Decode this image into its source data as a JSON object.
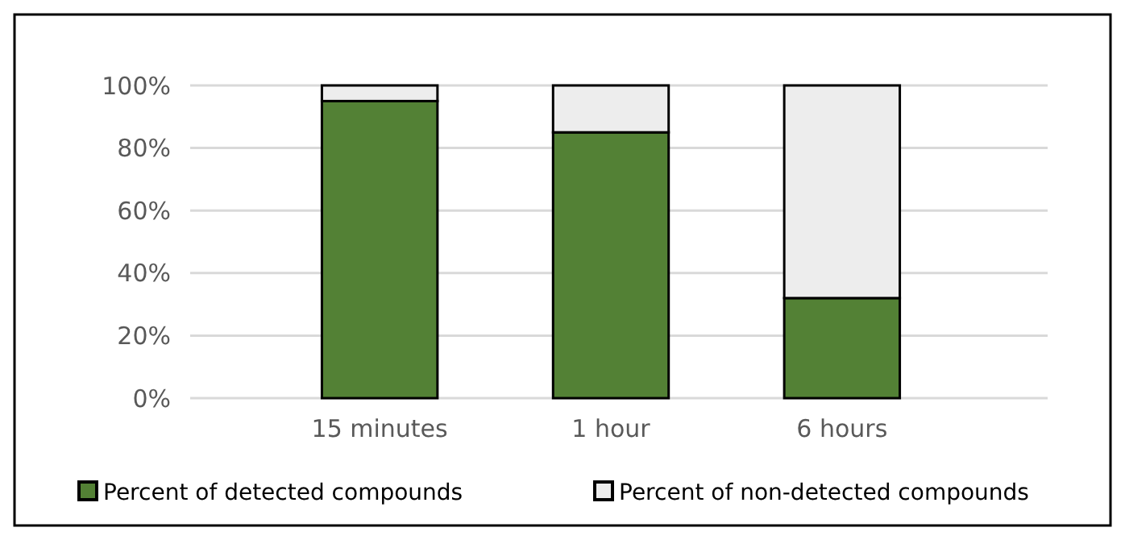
{
  "chart_data": {
    "type": "bar",
    "stacked": true,
    "categories": [
      "15 minutes",
      "1 hour",
      "6 hours"
    ],
    "series": [
      {
        "name": "Percent of detected compounds",
        "color": "#538135",
        "values": [
          95,
          85,
          32
        ]
      },
      {
        "name": "Percent of non-detected compounds",
        "color": "#ededed",
        "values": [
          5,
          15,
          68
        ]
      }
    ],
    "ylim": [
      0,
      100
    ],
    "yticks": [
      {
        "value": 0,
        "label": "0%"
      },
      {
        "value": 20,
        "label": "20%"
      },
      {
        "value": 40,
        "label": "40%"
      },
      {
        "value": 60,
        "label": "60%"
      },
      {
        "value": 80,
        "label": "80%"
      },
      {
        "value": 100,
        "label": "100%"
      }
    ],
    "grid": "y",
    "legend": "bottom"
  }
}
